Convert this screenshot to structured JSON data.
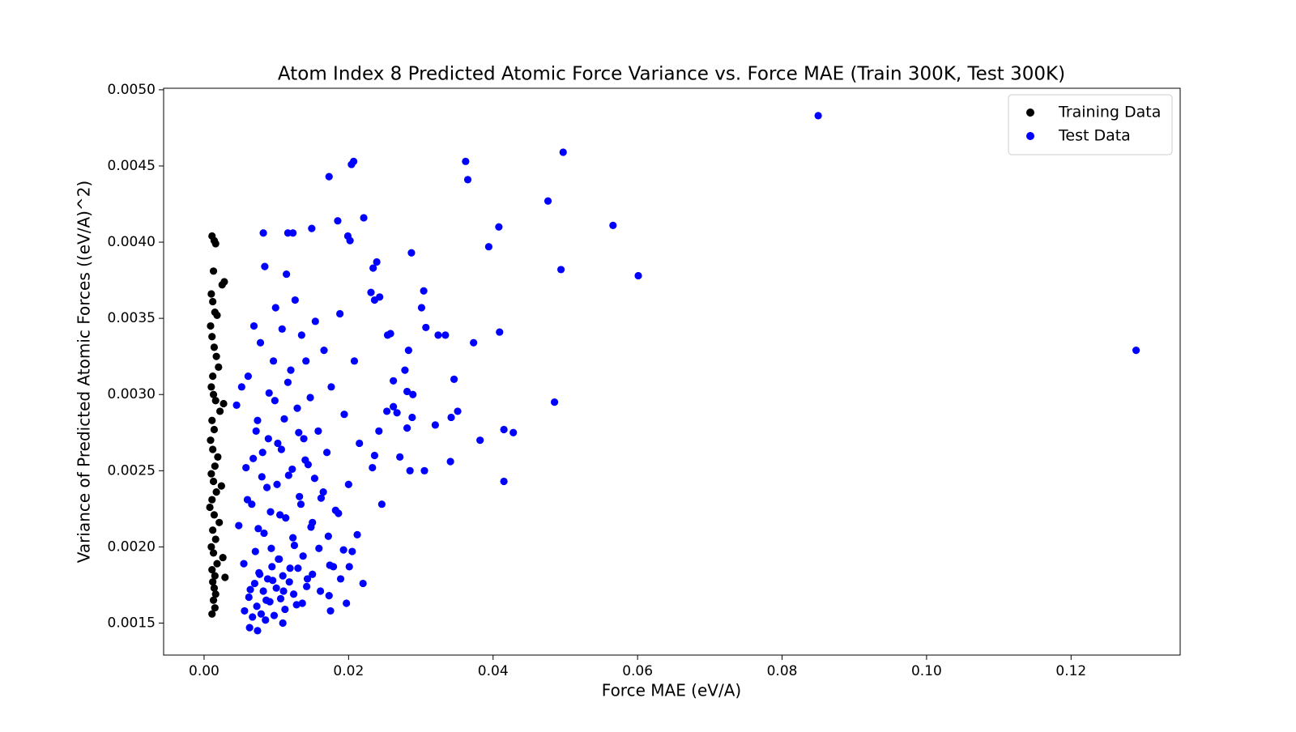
{
  "chart_data": {
    "type": "scatter",
    "title": "Atom Index 8 Predicted Atomic Force Variance vs. Force MAE (Train 300K, Test 300K)",
    "x_label": "Force MAE (eV/A)",
    "y_label": "Variance of Predicted Atomic Forces ((eV/A)^2)",
    "xlim": [
      -0.0056,
      0.1351
    ],
    "ylim": [
      0.00129,
      0.00501
    ],
    "xticks": [
      {
        "value": 0,
        "label": "0.00"
      },
      {
        "value": 0.02,
        "label": "0.02"
      },
      {
        "value": 0.04,
        "label": "0.04"
      },
      {
        "value": 0.06,
        "label": "0.06"
      },
      {
        "value": 0.08,
        "label": "0.08"
      },
      {
        "value": 0.1,
        "label": "0.10"
      },
      {
        "value": 0.12,
        "label": "0.12"
      }
    ],
    "yticks": [
      {
        "value": 0.0015,
        "label": "0.0015"
      },
      {
        "value": 0.002,
        "label": "0.0020"
      },
      {
        "value": 0.0025,
        "label": "0.0025"
      },
      {
        "value": 0.003,
        "label": "0.0030"
      },
      {
        "value": 0.0035,
        "label": "0.0035"
      },
      {
        "value": 0.004,
        "label": "0.0040"
      },
      {
        "value": 0.0045,
        "label": "0.0045"
      },
      {
        "value": 0.005,
        "label": "0.0050"
      }
    ],
    "legend": "upper right",
    "series": [
      {
        "name": "Training Data",
        "color": "#000000",
        "x": [
          0.0011,
          0.0014,
          0.0016,
          0.0013,
          0.0028,
          0.0025,
          0.001,
          0.0012,
          0.0015,
          0.0018,
          0.0009,
          0.0011,
          0.0014,
          0.0017,
          0.002,
          0.0012,
          0.001,
          0.0013,
          0.0016,
          0.0027,
          0.0022,
          0.0011,
          0.0014,
          0.0009,
          0.0012,
          0.0019,
          0.0015,
          0.001,
          0.0013,
          0.0024,
          0.0017,
          0.0011,
          0.0008,
          0.0014,
          0.0021,
          0.0012,
          0.0016,
          0.001,
          0.0013,
          0.0026,
          0.0018,
          0.0011,
          0.0015,
          0.0012,
          0.0014,
          0.0029,
          0.0016,
          0.0013,
          0.0015,
          0.0011
        ],
        "values": [
          0.00404,
          0.00401,
          0.00399,
          0.00381,
          0.00374,
          0.00372,
          0.00366,
          0.00361,
          0.00354,
          0.00352,
          0.00345,
          0.00338,
          0.00331,
          0.00325,
          0.00318,
          0.00312,
          0.00305,
          0.003,
          0.00296,
          0.00294,
          0.00289,
          0.00283,
          0.00277,
          0.0027,
          0.00264,
          0.00259,
          0.00253,
          0.00248,
          0.00243,
          0.0024,
          0.00236,
          0.00231,
          0.00226,
          0.00221,
          0.00216,
          0.00211,
          0.00205,
          0.002,
          0.00196,
          0.00193,
          0.00189,
          0.00185,
          0.00181,
          0.00177,
          0.00173,
          0.0018,
          0.00169,
          0.00165,
          0.0016,
          0.00156
        ]
      },
      {
        "name": "Test Data",
        "color": "#0000ff",
        "x": [
          0.085,
          0.129,
          0.0497,
          0.0362,
          0.0207,
          0.0204,
          0.0173,
          0.0365,
          0.0476,
          0.0566,
          0.0408,
          0.0394,
          0.0601,
          0.0494,
          0.0221,
          0.0185,
          0.0082,
          0.0116,
          0.0123,
          0.0149,
          0.0199,
          0.0202,
          0.0287,
          0.0239,
          0.0234,
          0.0304,
          0.0301,
          0.0409,
          0.0373,
          0.0324,
          0.0334,
          0.0307,
          0.0346,
          0.0485,
          0.0351,
          0.0342,
          0.0415,
          0.0428,
          0.0382,
          0.032,
          0.0288,
          0.0341,
          0.0305,
          0.0415,
          0.0285,
          0.0246,
          0.022,
          0.0197,
          0.0175,
          0.0173,
          0.0109,
          0.0074,
          0.0063,
          0.0283,
          0.0278,
          0.0281,
          0.0289,
          0.0258,
          0.0254,
          0.0243,
          0.0231,
          0.0236,
          0.0262,
          0.0267,
          0.0271,
          0.0236,
          0.0233,
          0.0262,
          0.0253,
          0.0281,
          0.0242,
          0.0045,
          0.0052,
          0.0058,
          0.0061,
          0.0066,
          0.0069,
          0.0072,
          0.0075,
          0.0078,
          0.0081,
          0.0084,
          0.0087,
          0.009,
          0.0093,
          0.0096,
          0.0099,
          0.0102,
          0.0105,
          0.0108,
          0.0111,
          0.0114,
          0.0117,
          0.012,
          0.0123,
          0.0126,
          0.0129,
          0.0132,
          0.0135,
          0.0138,
          0.0141,
          0.0144,
          0.0147,
          0.015,
          0.0154,
          0.0158,
          0.0162,
          0.0166,
          0.017,
          0.0176,
          0.0182,
          0.0188,
          0.0194,
          0.02,
          0.0208,
          0.0215,
          0.0048,
          0.0055,
          0.006,
          0.0064,
          0.0068,
          0.0071,
          0.0074,
          0.0077,
          0.008,
          0.0083,
          0.0086,
          0.0089,
          0.0092,
          0.0095,
          0.0098,
          0.0101,
          0.0104,
          0.0107,
          0.011,
          0.0113,
          0.0116,
          0.0119,
          0.0122,
          0.0125,
          0.0128,
          0.0131,
          0.0134,
          0.0137,
          0.014,
          0.0143,
          0.0148,
          0.0153,
          0.0159,
          0.0165,
          0.0172,
          0.0179,
          0.0186,
          0.0193,
          0.0201,
          0.0212,
          0.0056,
          0.0062,
          0.0067,
          0.007,
          0.0073,
          0.0076,
          0.0079,
          0.0082,
          0.0085,
          0.0088,
          0.0091,
          0.0094,
          0.0097,
          0.01,
          0.0103,
          0.0106,
          0.0109,
          0.0112,
          0.0118,
          0.0124,
          0.013,
          0.0136,
          0.0142,
          0.015,
          0.0161,
          0.0174,
          0.0189,
          0.0205
        ],
        "values": [
          0.00483,
          0.00329,
          0.00459,
          0.00453,
          0.00453,
          0.00451,
          0.00443,
          0.00441,
          0.00427,
          0.00411,
          0.0041,
          0.00397,
          0.00378,
          0.00382,
          0.00416,
          0.00414,
          0.00406,
          0.00406,
          0.00406,
          0.00409,
          0.00404,
          0.00401,
          0.00393,
          0.00387,
          0.00383,
          0.00368,
          0.00357,
          0.00341,
          0.00334,
          0.00339,
          0.00339,
          0.00344,
          0.0031,
          0.00295,
          0.00289,
          0.00285,
          0.00277,
          0.00275,
          0.0027,
          0.0028,
          0.00285,
          0.00256,
          0.0025,
          0.00243,
          0.0025,
          0.00228,
          0.00176,
          0.00163,
          0.00158,
          0.00168,
          0.0015,
          0.00145,
          0.00147,
          0.00329,
          0.00316,
          0.00302,
          0.003,
          0.0034,
          0.00339,
          0.00364,
          0.00367,
          0.00362,
          0.00309,
          0.00288,
          0.00259,
          0.0026,
          0.00252,
          0.00292,
          0.00289,
          0.00278,
          0.00276,
          0.00293,
          0.00305,
          0.00252,
          0.00312,
          0.00228,
          0.00345,
          0.00276,
          0.00212,
          0.00334,
          0.00262,
          0.00384,
          0.00239,
          0.00301,
          0.00199,
          0.00322,
          0.00357,
          0.00268,
          0.00221,
          0.00343,
          0.00284,
          0.00379,
          0.00247,
          0.00316,
          0.00206,
          0.00362,
          0.00291,
          0.00233,
          0.00339,
          0.00271,
          0.00322,
          0.00254,
          0.00298,
          0.00216,
          0.00348,
          0.00276,
          0.00232,
          0.00329,
          0.00262,
          0.00305,
          0.00224,
          0.00353,
          0.00287,
          0.00241,
          0.00322,
          0.00268,
          0.00214,
          0.00189,
          0.00231,
          0.00172,
          0.00258,
          0.00197,
          0.00283,
          0.00182,
          0.00246,
          0.00209,
          0.00165,
          0.00271,
          0.00223,
          0.00178,
          0.00296,
          0.00241,
          0.00192,
          0.00264,
          0.00171,
          0.00219,
          0.00308,
          0.00186,
          0.00251,
          0.00201,
          0.00162,
          0.00275,
          0.00228,
          0.00194,
          0.00257,
          0.00179,
          0.00213,
          0.00245,
          0.00199,
          0.00236,
          0.00207,
          0.00187,
          0.00222,
          0.00198,
          0.00187,
          0.00208,
          0.00158,
          0.00167,
          0.00154,
          0.00176,
          0.00161,
          0.00183,
          0.00156,
          0.00171,
          0.00152,
          0.00179,
          0.00164,
          0.00187,
          0.00155,
          0.00173,
          0.00192,
          0.00166,
          0.00181,
          0.00159,
          0.00177,
          0.00169,
          0.00186,
          0.00163,
          0.00174,
          0.00182,
          0.00171,
          0.00188,
          0.00179,
          0.00197
        ]
      }
    ]
  }
}
